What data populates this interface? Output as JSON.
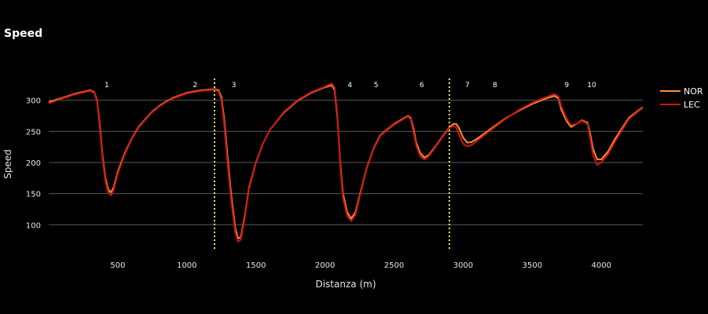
{
  "chart_data": {
    "type": "line",
    "title": "Speed",
    "xlabel": "Distanza (m)",
    "ylabel": "Speed",
    "xlim": [
      0,
      4300
    ],
    "ylim": [
      60,
      335
    ],
    "x_ticks": [
      500,
      1000,
      1500,
      2000,
      2500,
      3000,
      3500,
      4000
    ],
    "y_ticks": [
      100,
      150,
      200,
      250,
      300
    ],
    "grid": "horizontal",
    "legend_position": "right",
    "sector_lines": [
      1200,
      2900
    ],
    "corners": [
      {
        "label": "1",
        "x": 420
      },
      {
        "label": "2",
        "x": 1060
      },
      {
        "label": "3",
        "x": 1340
      },
      {
        "label": "4",
        "x": 2180
      },
      {
        "label": "5",
        "x": 2370
      },
      {
        "label": "6",
        "x": 2700
      },
      {
        "label": "7",
        "x": 3030
      },
      {
        "label": "8",
        "x": 3230
      },
      {
        "label": "9",
        "x": 3750
      },
      {
        "label": "10",
        "x": 3930
      }
    ],
    "series": [
      {
        "name": "NOR",
        "color": "#ff8f2e",
        "points": [
          [
            0,
            297
          ],
          [
            100,
            304
          ],
          [
            200,
            311
          ],
          [
            300,
            316
          ],
          [
            330,
            313
          ],
          [
            350,
            300
          ],
          [
            370,
            260
          ],
          [
            390,
            210
          ],
          [
            410,
            175
          ],
          [
            430,
            157
          ],
          [
            450,
            152
          ],
          [
            470,
            160
          ],
          [
            500,
            185
          ],
          [
            550,
            215
          ],
          [
            600,
            238
          ],
          [
            650,
            257
          ],
          [
            700,
            270
          ],
          [
            750,
            282
          ],
          [
            800,
            291
          ],
          [
            850,
            298
          ],
          [
            900,
            304
          ],
          [
            1000,
            312
          ],
          [
            1100,
            316
          ],
          [
            1200,
            318
          ],
          [
            1230,
            316
          ],
          [
            1250,
            305
          ],
          [
            1270,
            270
          ],
          [
            1290,
            220
          ],
          [
            1320,
            150
          ],
          [
            1350,
            95
          ],
          [
            1370,
            78
          ],
          [
            1390,
            80
          ],
          [
            1420,
            115
          ],
          [
            1450,
            160
          ],
          [
            1500,
            200
          ],
          [
            1550,
            230
          ],
          [
            1600,
            252
          ],
          [
            1700,
            280
          ],
          [
            1800,
            299
          ],
          [
            1900,
            312
          ],
          [
            2000,
            321
          ],
          [
            2050,
            324
          ],
          [
            2070,
            316
          ],
          [
            2090,
            270
          ],
          [
            2110,
            200
          ],
          [
            2130,
            150
          ],
          [
            2160,
            120
          ],
          [
            2190,
            110
          ],
          [
            2220,
            120
          ],
          [
            2260,
            155
          ],
          [
            2300,
            190
          ],
          [
            2350,
            222
          ],
          [
            2400,
            244
          ],
          [
            2500,
            262
          ],
          [
            2600,
            275
          ],
          [
            2620,
            272
          ],
          [
            2640,
            255
          ],
          [
            2660,
            232
          ],
          [
            2690,
            215
          ],
          [
            2720,
            208
          ],
          [
            2750,
            212
          ],
          [
            2800,
            226
          ],
          [
            2850,
            242
          ],
          [
            2900,
            256
          ],
          [
            2930,
            262
          ],
          [
            2950,
            262
          ],
          [
            2970,
            255
          ],
          [
            3000,
            240
          ],
          [
            3030,
            232
          ],
          [
            3060,
            233
          ],
          [
            3100,
            238
          ],
          [
            3200,
            254
          ],
          [
            3300,
            270
          ],
          [
            3400,
            283
          ],
          [
            3500,
            294
          ],
          [
            3600,
            303
          ],
          [
            3660,
            307
          ],
          [
            3690,
            303
          ],
          [
            3710,
            285
          ],
          [
            3750,
            266
          ],
          [
            3780,
            257
          ],
          [
            3820,
            262
          ],
          [
            3860,
            268
          ],
          [
            3900,
            264
          ],
          [
            3920,
            245
          ],
          [
            3940,
            222
          ],
          [
            3970,
            205
          ],
          [
            4000,
            205
          ],
          [
            4050,
            218
          ],
          [
            4100,
            238
          ],
          [
            4150,
            255
          ],
          [
            4200,
            272
          ],
          [
            4300,
            289
          ]
        ]
      },
      {
        "name": "LEC",
        "color": "#cc1515",
        "points": [
          [
            0,
            295
          ],
          [
            100,
            303
          ],
          [
            200,
            310
          ],
          [
            300,
            315
          ],
          [
            330,
            312
          ],
          [
            350,
            298
          ],
          [
            370,
            255
          ],
          [
            390,
            205
          ],
          [
            410,
            170
          ],
          [
            430,
            152
          ],
          [
            450,
            147
          ],
          [
            470,
            156
          ],
          [
            500,
            182
          ],
          [
            550,
            213
          ],
          [
            600,
            237
          ],
          [
            650,
            256
          ],
          [
            700,
            269
          ],
          [
            750,
            281
          ],
          [
            800,
            290
          ],
          [
            850,
            297
          ],
          [
            900,
            303
          ],
          [
            1000,
            311
          ],
          [
            1100,
            315
          ],
          [
            1200,
            317
          ],
          [
            1230,
            314
          ],
          [
            1250,
            300
          ],
          [
            1270,
            262
          ],
          [
            1290,
            210
          ],
          [
            1320,
            140
          ],
          [
            1350,
            88
          ],
          [
            1370,
            73
          ],
          [
            1390,
            76
          ],
          [
            1420,
            112
          ],
          [
            1450,
            158
          ],
          [
            1500,
            199
          ],
          [
            1550,
            230
          ],
          [
            1600,
            252
          ],
          [
            1700,
            281
          ],
          [
            1800,
            300
          ],
          [
            1900,
            313
          ],
          [
            2000,
            322
          ],
          [
            2050,
            327
          ],
          [
            2070,
            320
          ],
          [
            2090,
            275
          ],
          [
            2110,
            195
          ],
          [
            2130,
            143
          ],
          [
            2160,
            114
          ],
          [
            2190,
            106
          ],
          [
            2220,
            116
          ],
          [
            2260,
            153
          ],
          [
            2300,
            189
          ],
          [
            2350,
            221
          ],
          [
            2400,
            243
          ],
          [
            2500,
            261
          ],
          [
            2600,
            274
          ],
          [
            2620,
            270
          ],
          [
            2640,
            250
          ],
          [
            2660,
            227
          ],
          [
            2690,
            210
          ],
          [
            2720,
            205
          ],
          [
            2750,
            210
          ],
          [
            2800,
            225
          ],
          [
            2850,
            241
          ],
          [
            2900,
            255
          ],
          [
            2930,
            259
          ],
          [
            2950,
            256
          ],
          [
            2970,
            245
          ],
          [
            3000,
            230
          ],
          [
            3030,
            226
          ],
          [
            3060,
            228
          ],
          [
            3100,
            235
          ],
          [
            3200,
            252
          ],
          [
            3300,
            269
          ],
          [
            3400,
            284
          ],
          [
            3500,
            296
          ],
          [
            3600,
            305
          ],
          [
            3660,
            310
          ],
          [
            3690,
            306
          ],
          [
            3710,
            290
          ],
          [
            3750,
            270
          ],
          [
            3780,
            260
          ],
          [
            3820,
            262
          ],
          [
            3860,
            267
          ],
          [
            3900,
            262
          ],
          [
            3920,
            238
          ],
          [
            3940,
            212
          ],
          [
            3970,
            196
          ],
          [
            4000,
            200
          ],
          [
            4050,
            214
          ],
          [
            4100,
            234
          ],
          [
            4150,
            252
          ],
          [
            4200,
            270
          ],
          [
            4300,
            288
          ]
        ]
      }
    ]
  }
}
